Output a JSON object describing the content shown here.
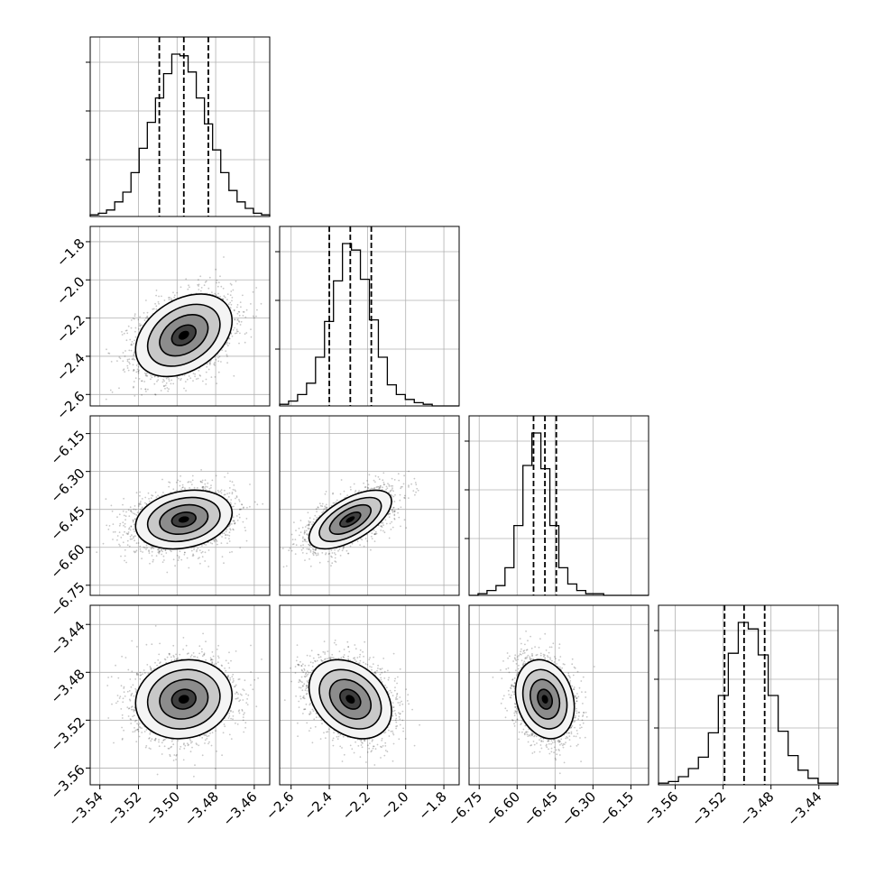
{
  "chart_data": {
    "type": "scatter",
    "kind": "corner",
    "n_params": 4,
    "params": [
      {
        "range": [
          -3.545,
          -3.452
        ],
        "ticks": [
          -3.54,
          -3.52,
          -3.5,
          -3.48,
          -3.46
        ],
        "tick_labels": [
          "−3.54",
          "−3.52",
          "−3.50",
          "−3.48",
          "−3.46"
        ]
      },
      {
        "range": [
          -2.66,
          -1.72
        ],
        "ticks": [
          -2.6,
          -2.4,
          -2.2,
          -2.0,
          -1.8
        ],
        "tick_labels": [
          "−2.6",
          "−2.4",
          "−2.2",
          "−2.0",
          "−1.8"
        ]
      },
      {
        "range": [
          -6.79,
          -6.08
        ],
        "ticks": [
          -6.75,
          -6.6,
          -6.45,
          -6.3,
          -6.15
        ],
        "tick_labels": [
          "−6.75",
          "−6.60",
          "−6.45",
          "−6.30",
          "−6.15"
        ]
      },
      {
        "range": [
          -3.574,
          -3.424
        ],
        "ticks": [
          -3.56,
          -3.52,
          -3.48,
          -3.44
        ],
        "tick_labels": [
          "−3.56",
          "−3.52",
          "−3.48",
          "−3.44"
        ]
      }
    ],
    "histograms": [
      {
        "values": [
          1,
          2,
          4,
          9,
          15,
          27,
          42,
          58,
          73,
          88,
          100,
          99,
          89,
          73,
          57,
          41,
          27,
          16,
          9,
          5,
          2,
          1
        ],
        "quantiles": [
          -3.5092,
          -3.4965,
          -3.4838
        ]
      },
      {
        "values": [
          1,
          3,
          7,
          14,
          30,
          52,
          77,
          100,
          96,
          78,
          53,
          30,
          13,
          7,
          4,
          2,
          1,
          0,
          0,
          0
        ],
        "quantiles": [
          -2.4,
          -2.29,
          -2.18
        ]
      },
      {
        "values": [
          0,
          1,
          3,
          6,
          17,
          43,
          80,
          100,
          78,
          43,
          17,
          7,
          3,
          1,
          1,
          0,
          0,
          0,
          0,
          0
        ],
        "quantiles": [
          -6.535,
          -6.49,
          -6.445
        ]
      },
      {
        "values": [
          1,
          2,
          5,
          10,
          17,
          32,
          55,
          81,
          100,
          96,
          80,
          55,
          33,
          18,
          9,
          4,
          1,
          1
        ],
        "quantiles": [
          -3.5188,
          -3.5025,
          -3.4853
        ]
      }
    ],
    "contours": [
      {
        "x": 0,
        "y": 1,
        "center": [
          -3.4965,
          -2.29
        ],
        "sigma": [
          0.0125,
          0.108
        ],
        "corr": 0.35
      },
      {
        "x": 0,
        "y": 2,
        "center": [
          -3.4965,
          -6.49
        ],
        "sigma": [
          0.0125,
          0.058
        ],
        "corr": 0.22
      },
      {
        "x": 1,
        "y": 2,
        "center": [
          -2.29,
          -6.49
        ],
        "sigma": [
          0.108,
          0.058
        ],
        "corr": 0.62
      },
      {
        "x": 0,
        "y": 3,
        "center": [
          -3.4965,
          -3.5025
        ],
        "sigma": [
          0.0125,
          0.0165
        ],
        "corr": 0.1
      },
      {
        "x": 1,
        "y": 3,
        "center": [
          -2.29,
          -3.5025
        ],
        "sigma": [
          0.108,
          0.0165
        ],
        "corr": -0.3
      },
      {
        "x": 2,
        "y": 3,
        "center": [
          -6.49,
          -3.5025
        ],
        "sigma": [
          0.058,
          0.0165
        ],
        "corr": -0.2
      }
    ],
    "levels_sigma": [
      0.5,
      1.0,
      1.5,
      2.0
    ],
    "grid": true,
    "colors": {
      "points": "#000000",
      "lines": "#000000",
      "grid": "#b0b0b0",
      "frame": "#000000"
    }
  }
}
